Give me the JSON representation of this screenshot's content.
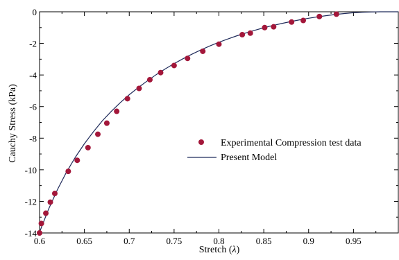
{
  "chart_data": {
    "type": "scatter",
    "title": "",
    "xlabel": "Stretch (λ)",
    "xlabel_text": "Stretch (",
    "xlabel_symbol": "λ",
    "xlabel_close": ")",
    "ylabel": "Cauchy Stress (kPa)",
    "xlim": [
      0.6,
      1.0
    ],
    "ylim": [
      -14,
      0
    ],
    "x_ticks": [
      0.6,
      0.65,
      0.7,
      0.75,
      0.8,
      0.85,
      0.9,
      0.95
    ],
    "x_tick_labels": [
      "0.6",
      "0.65",
      "0.7",
      "0.75",
      "0.8",
      "0.85",
      "0.9",
      "0.95"
    ],
    "y_ticks": [
      0,
      -2,
      -4,
      -6,
      -8,
      -10,
      -12,
      -14
    ],
    "y_tick_labels": [
      "0",
      "-2",
      "-4",
      "-6",
      "-8",
      "-10",
      "-12",
      "-14"
    ],
    "grid": false,
    "legend_position": "center-right",
    "colors": {
      "markers": "#a3173a",
      "line": "#1f2a5a"
    },
    "series": [
      {
        "name": "Experimental Compression test data",
        "kind": "markers",
        "x": [
          0.6,
          0.602,
          0.607,
          0.612,
          0.617,
          0.632,
          0.642,
          0.654,
          0.665,
          0.675,
          0.686,
          0.698,
          0.711,
          0.723,
          0.735,
          0.75,
          0.765,
          0.782,
          0.8,
          0.826,
          0.835,
          0.851,
          0.861,
          0.881,
          0.894,
          0.912,
          0.931
        ],
        "y": [
          -14.0,
          -13.4,
          -12.75,
          -12.05,
          -11.5,
          -10.1,
          -9.4,
          -8.6,
          -7.75,
          -7.05,
          -6.3,
          -5.5,
          -4.85,
          -4.3,
          -3.85,
          -3.4,
          -2.95,
          -2.5,
          -2.05,
          -1.45,
          -1.35,
          -1.0,
          -0.95,
          -0.65,
          -0.55,
          -0.3,
          -0.15
        ]
      },
      {
        "name": "Present Model",
        "kind": "line",
        "x": [
          0.6,
          0.61,
          0.62,
          0.63,
          0.64,
          0.65,
          0.66,
          0.67,
          0.68,
          0.69,
          0.7,
          0.71,
          0.72,
          0.73,
          0.74,
          0.75,
          0.76,
          0.77,
          0.78,
          0.79,
          0.8,
          0.81,
          0.82,
          0.83,
          0.84,
          0.85,
          0.86,
          0.87,
          0.88,
          0.89,
          0.9,
          0.91,
          0.92,
          0.93,
          0.94,
          0.95,
          0.96,
          0.97,
          0.98,
          0.99,
          1.0
        ],
        "y": [
          -13.95,
          -12.5,
          -11.25,
          -10.15,
          -9.2,
          -8.35,
          -7.6,
          -6.9,
          -6.3,
          -5.75,
          -5.25,
          -4.8,
          -4.38,
          -3.98,
          -3.62,
          -3.28,
          -2.97,
          -2.68,
          -2.41,
          -2.16,
          -1.93,
          -1.72,
          -1.52,
          -1.34,
          -1.17,
          -1.01,
          -0.87,
          -0.74,
          -0.62,
          -0.51,
          -0.41,
          -0.32,
          -0.24,
          -0.17,
          -0.11,
          -0.06,
          -0.03,
          -0.01,
          0.0,
          0.0,
          0.0
        ]
      }
    ]
  }
}
